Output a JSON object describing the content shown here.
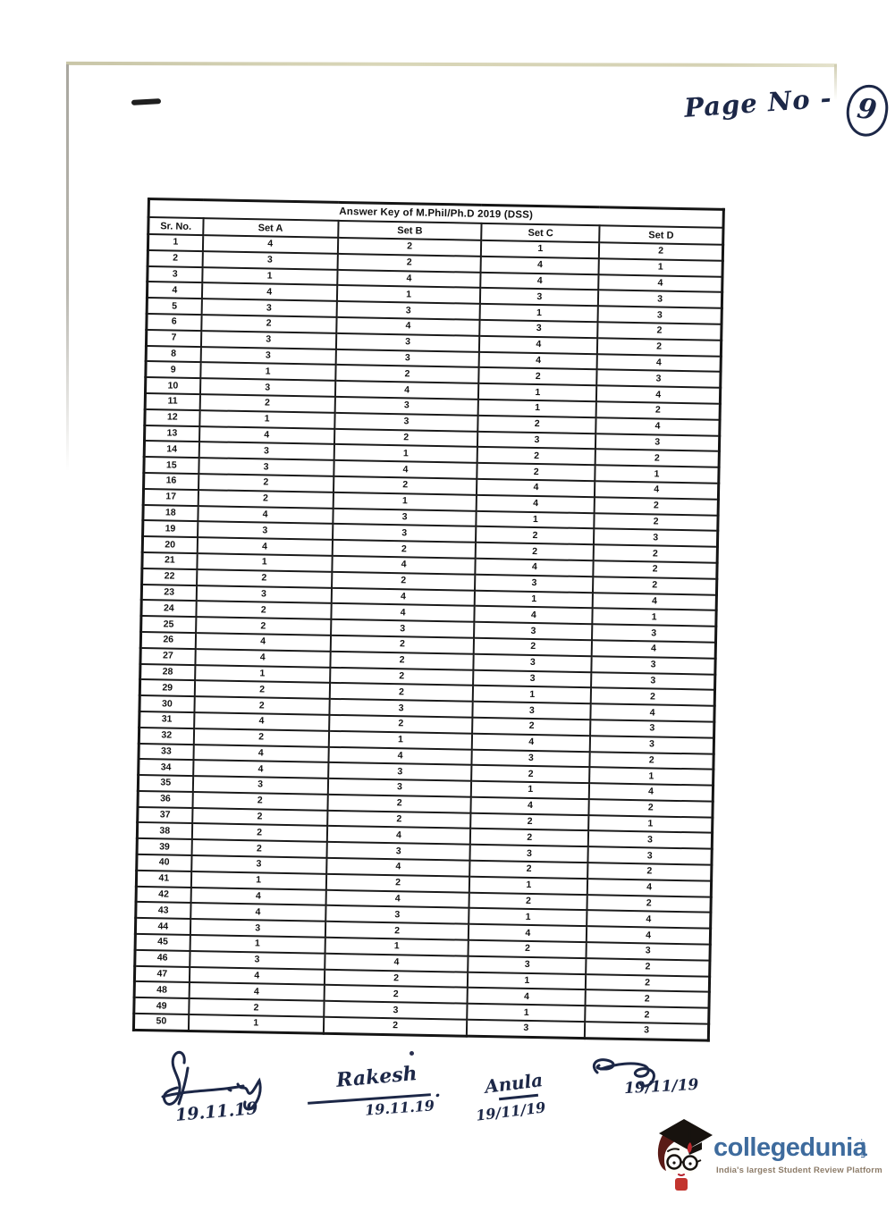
{
  "page": {
    "page_no_label": "Page No -",
    "page_no_value": "9"
  },
  "table": {
    "title": "Answer Key of M.Phil/Ph.D 2019 (DSS)",
    "columns": [
      "Sr. No.",
      "Set A",
      "Set B",
      "Set C",
      "Set D"
    ],
    "rows": [
      [
        1,
        4,
        2,
        1,
        2
      ],
      [
        2,
        3,
        2,
        4,
        1
      ],
      [
        3,
        1,
        4,
        4,
        4
      ],
      [
        4,
        4,
        1,
        3,
        3
      ],
      [
        5,
        3,
        3,
        1,
        3
      ],
      [
        6,
        2,
        4,
        3,
        2
      ],
      [
        7,
        3,
        3,
        4,
        2
      ],
      [
        8,
        3,
        3,
        4,
        4
      ],
      [
        9,
        1,
        2,
        2,
        3
      ],
      [
        10,
        3,
        4,
        1,
        4
      ],
      [
        11,
        2,
        3,
        1,
        2
      ],
      [
        12,
        1,
        3,
        2,
        4
      ],
      [
        13,
        4,
        2,
        3,
        3
      ],
      [
        14,
        3,
        1,
        2,
        2
      ],
      [
        15,
        3,
        4,
        2,
        1
      ],
      [
        16,
        2,
        2,
        4,
        4
      ],
      [
        17,
        2,
        1,
        4,
        2
      ],
      [
        18,
        4,
        3,
        1,
        2
      ],
      [
        19,
        3,
        3,
        2,
        3
      ],
      [
        20,
        4,
        2,
        2,
        2
      ],
      [
        21,
        1,
        4,
        4,
        2
      ],
      [
        22,
        2,
        2,
        3,
        2
      ],
      [
        23,
        3,
        4,
        1,
        4
      ],
      [
        24,
        2,
        4,
        4,
        1
      ],
      [
        25,
        2,
        3,
        3,
        3
      ],
      [
        26,
        4,
        2,
        2,
        4
      ],
      [
        27,
        4,
        2,
        3,
        3
      ],
      [
        28,
        1,
        2,
        3,
        3
      ],
      [
        29,
        2,
        2,
        1,
        2
      ],
      [
        30,
        2,
        3,
        3,
        4
      ],
      [
        31,
        4,
        2,
        2,
        3
      ],
      [
        32,
        2,
        1,
        4,
        3
      ],
      [
        33,
        4,
        4,
        3,
        2
      ],
      [
        34,
        4,
        3,
        2,
        1
      ],
      [
        35,
        3,
        3,
        1,
        4
      ],
      [
        36,
        2,
        2,
        4,
        2
      ],
      [
        37,
        2,
        2,
        2,
        1
      ],
      [
        38,
        2,
        4,
        2,
        3
      ],
      [
        39,
        2,
        3,
        3,
        3
      ],
      [
        40,
        3,
        4,
        2,
        2
      ],
      [
        41,
        1,
        2,
        1,
        4
      ],
      [
        42,
        4,
        4,
        2,
        2
      ],
      [
        43,
        4,
        3,
        1,
        4
      ],
      [
        44,
        3,
        2,
        4,
        4
      ],
      [
        45,
        1,
        1,
        2,
        3
      ],
      [
        46,
        3,
        4,
        3,
        2
      ],
      [
        47,
        4,
        2,
        1,
        2
      ],
      [
        48,
        4,
        2,
        4,
        2
      ],
      [
        49,
        2,
        3,
        1,
        2
      ],
      [
        50,
        1,
        2,
        3,
        3
      ]
    ]
  },
  "signatures": [
    {
      "name": "",
      "date": "19.11.19"
    },
    {
      "name": "Rakesh",
      "date": "19.11.19"
    },
    {
      "name": "Anula",
      "date": "19/11/19"
    },
    {
      "name": "",
      "date": "19/11/19"
    }
  ],
  "branding": {
    "logo_text": "collegedunia",
    "logo_tld": ".com",
    "tagline": "India's largest Student Review Platform",
    "colors": {
      "logo_blue": "#3e6b9d",
      "tagline_brown": "#8d7c69",
      "ink_blue": "#1c2747",
      "tassel_red": "#c0272d",
      "cap_black": "#17120e",
      "hair_maroon": "#5a1b17"
    }
  }
}
